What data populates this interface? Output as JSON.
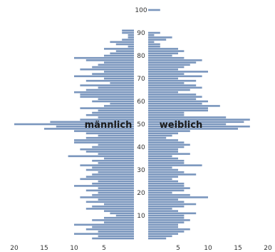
{
  "chart_data": {
    "type": "bar",
    "orientation": "horizontal-pyramid",
    "bar_color": "#7a96bd",
    "age_axis_ticks": [
      "10",
      "20",
      "30",
      "40",
      "50",
      "60",
      "70",
      "80",
      "90",
      "100"
    ],
    "x_ticks_left": [
      "20",
      "15",
      "10",
      "5"
    ],
    "x_ticks_right": [
      "5",
      "10",
      "15",
      "20"
    ],
    "xlim": [
      0,
      20
    ],
    "ylim": [
      0,
      100
    ],
    "series": [
      {
        "name": "männlich",
        "side": "left",
        "categories": [
          0,
          1,
          2,
          3,
          4,
          5,
          6,
          7,
          8,
          9,
          10,
          11,
          12,
          13,
          14,
          15,
          16,
          17,
          18,
          19,
          20,
          21,
          22,
          23,
          24,
          25,
          26,
          27,
          28,
          29,
          30,
          31,
          32,
          33,
          34,
          35,
          36,
          37,
          38,
          39,
          40,
          41,
          42,
          43,
          44,
          45,
          46,
          47,
          48,
          49,
          50,
          51,
          52,
          53,
          54,
          55,
          56,
          57,
          58,
          59,
          60,
          61,
          62,
          63,
          64,
          65,
          66,
          67,
          68,
          69,
          70,
          71,
          72,
          73,
          74,
          75,
          76,
          77,
          78,
          79,
          80,
          81,
          82,
          83,
          84,
          85,
          86,
          87,
          88,
          89,
          90,
          91
        ],
        "values": [
          7,
          6,
          10,
          6,
          8,
          7,
          10,
          5,
          7,
          5,
          3,
          4,
          5,
          8,
          7,
          5,
          8,
          6,
          9,
          7,
          6,
          8,
          6,
          10,
          7,
          6,
          9,
          8,
          7,
          6,
          8,
          7,
          9,
          6,
          7,
          5,
          11,
          6,
          8,
          9,
          7,
          6,
          10,
          10,
          8,
          6,
          8,
          10,
          15,
          13,
          20,
          14,
          9,
          6,
          8,
          7,
          6,
          9,
          5,
          4,
          7,
          6,
          9,
          9,
          10,
          8,
          6,
          9,
          4,
          8,
          5,
          10,
          7,
          5,
          9,
          7,
          6,
          5,
          8,
          10,
          5,
          4,
          3,
          5,
          1,
          3,
          4,
          2,
          1,
          1,
          2,
          2
        ]
      },
      {
        "name": "weiblich",
        "side": "right",
        "categories": [
          0,
          1,
          2,
          3,
          4,
          5,
          6,
          7,
          8,
          9,
          10,
          11,
          12,
          13,
          14,
          15,
          16,
          17,
          18,
          19,
          20,
          21,
          22,
          23,
          24,
          25,
          26,
          27,
          28,
          29,
          30,
          31,
          32,
          33,
          34,
          35,
          36,
          37,
          38,
          39,
          40,
          41,
          42,
          43,
          44,
          45,
          46,
          47,
          48,
          49,
          50,
          51,
          52,
          53,
          54,
          55,
          56,
          57,
          58,
          59,
          60,
          61,
          62,
          63,
          64,
          65,
          66,
          67,
          68,
          69,
          70,
          71,
          72,
          73,
          74,
          75,
          76,
          77,
          78,
          79,
          80,
          81,
          82,
          83,
          84,
          85,
          86,
          87,
          88,
          89,
          90,
          91,
          92,
          93,
          94,
          95,
          96,
          97,
          98,
          99,
          100
        ],
        "values": [
          3,
          4,
          5,
          6,
          7,
          5,
          5,
          6,
          7,
          6,
          6,
          8,
          5,
          4,
          6,
          8,
          6,
          5,
          10,
          7,
          4,
          6,
          7,
          6,
          6,
          5,
          4,
          5,
          8,
          6,
          5,
          4,
          9,
          6,
          6,
          5,
          4,
          7,
          5,
          5,
          6,
          7,
          6,
          5,
          3,
          4,
          5,
          7,
          15,
          17,
          13,
          16,
          17,
          13,
          6,
          6,
          10,
          10,
          12,
          9,
          10,
          8,
          9,
          8,
          5,
          7,
          9,
          8,
          6,
          8,
          5,
          9,
          6,
          10,
          5,
          6,
          7,
          8,
          9,
          6,
          4,
          5,
          6,
          5,
          2,
          2,
          1,
          3,
          4,
          1,
          2,
          0,
          0,
          0,
          0,
          0,
          0,
          0,
          0,
          0,
          2
        ]
      }
    ]
  }
}
